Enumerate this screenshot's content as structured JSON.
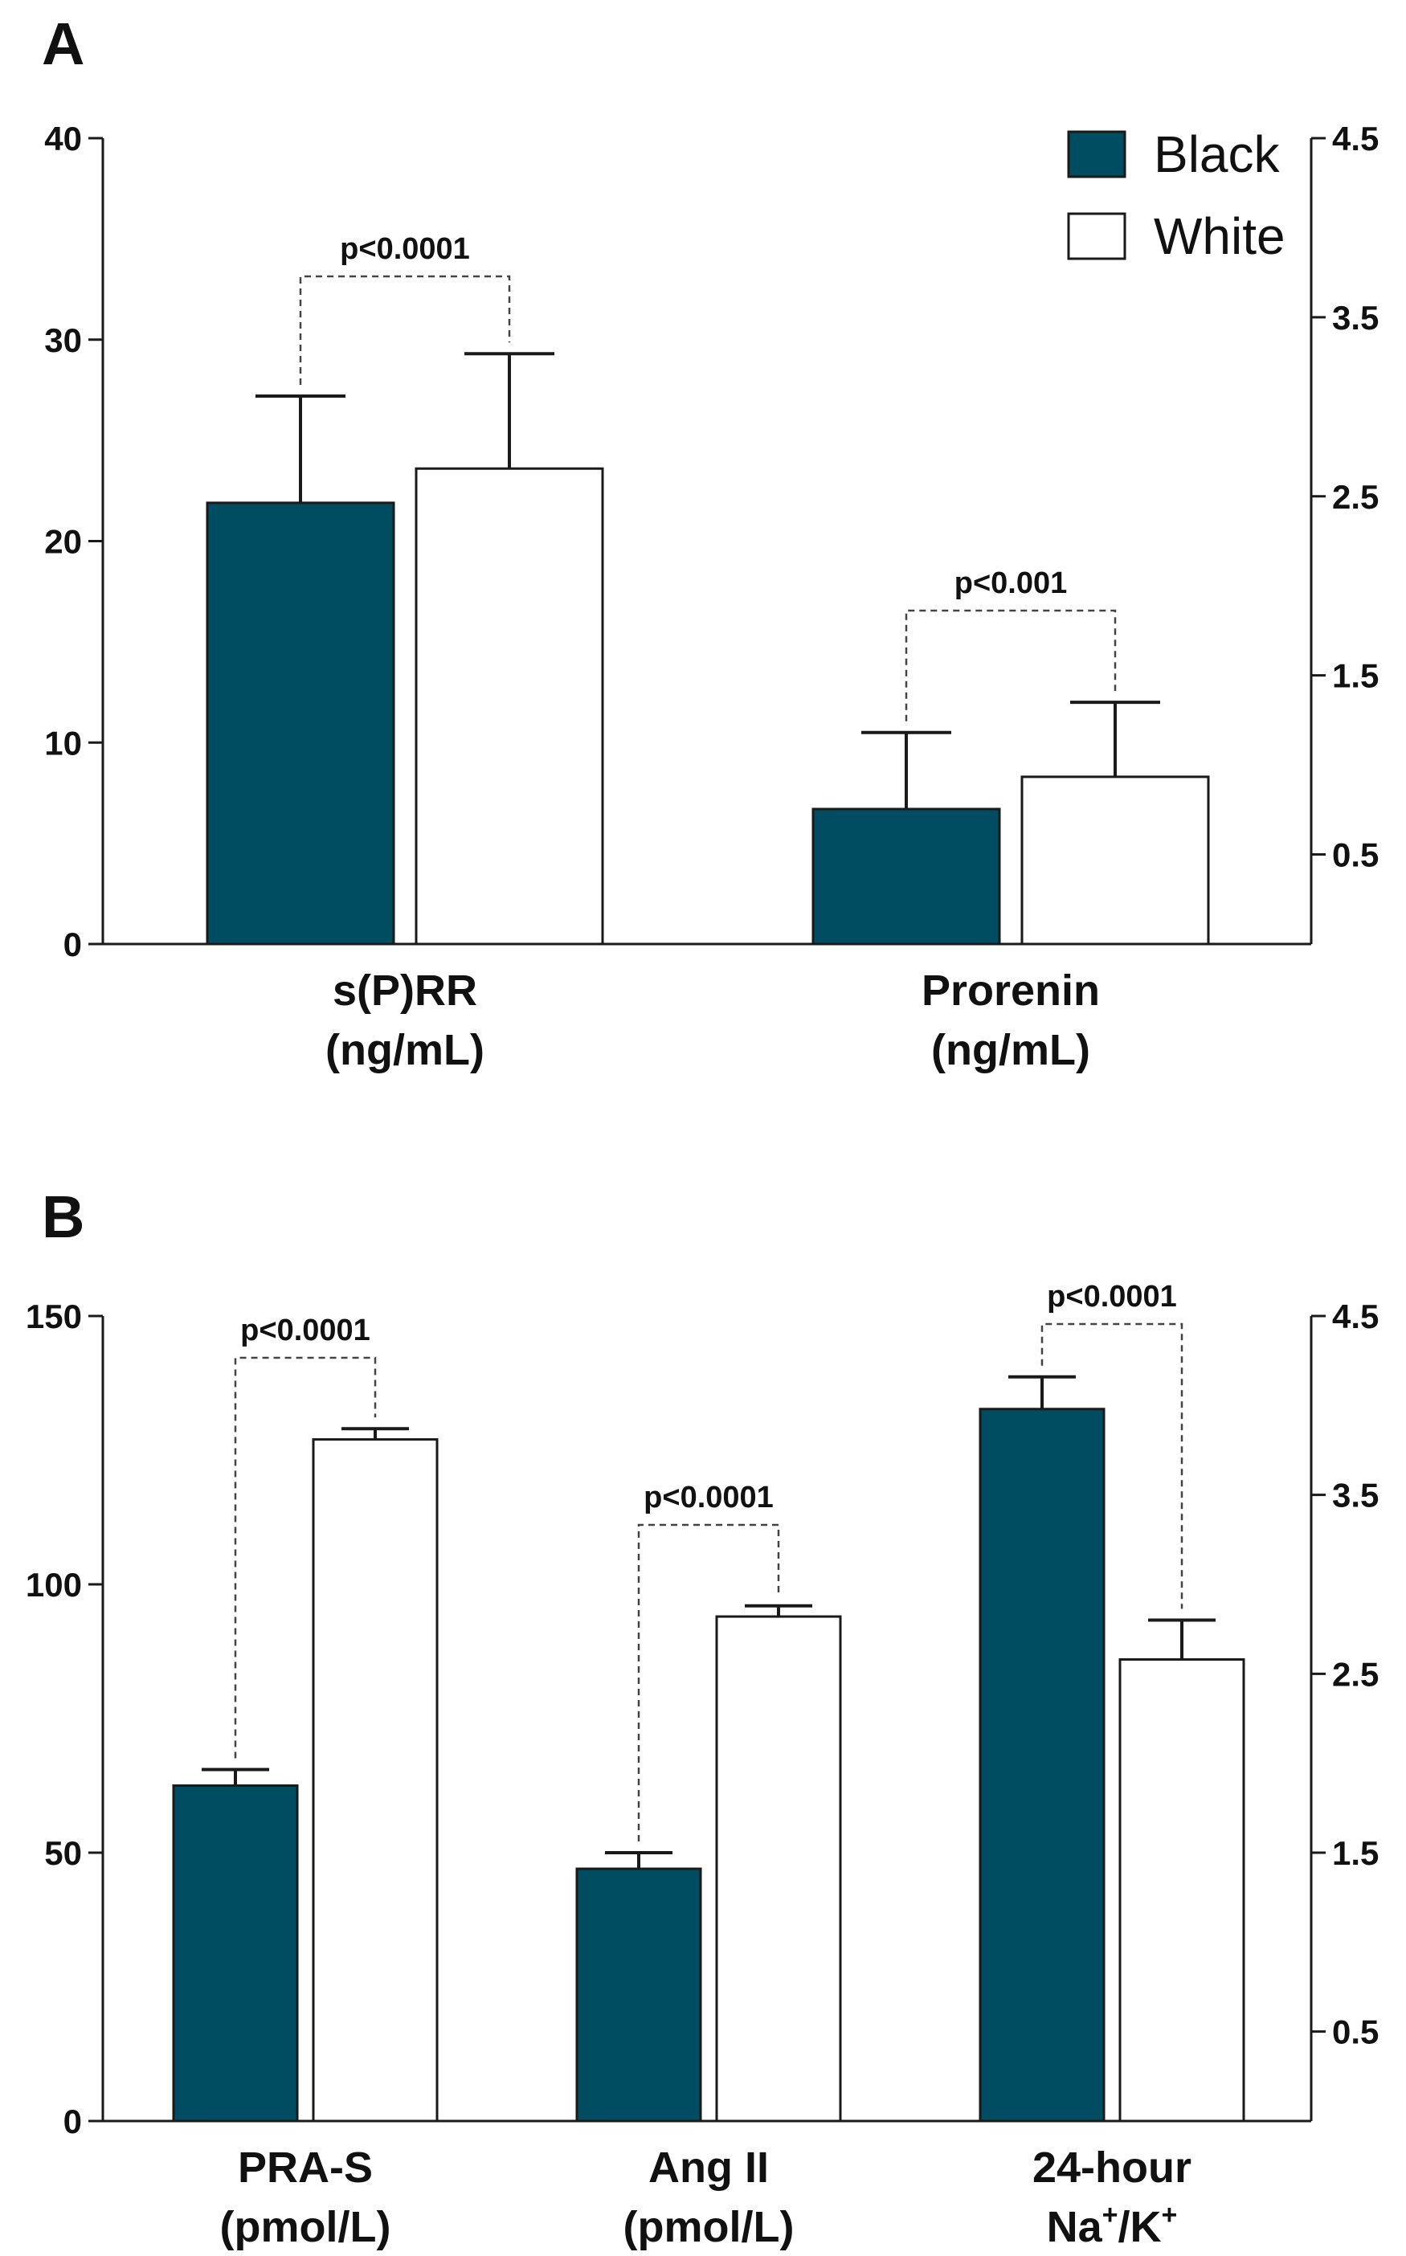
{
  "colors": {
    "black_series": "#004d62",
    "white_series": "#ffffff",
    "axis": "#1a1a1a"
  },
  "chart_data": [
    {
      "panel": "A",
      "type": "bar",
      "categories": [
        {
          "line1": "s(P)RR",
          "line2": "(ng/mL)"
        },
        {
          "line1": "Prorenin",
          "line2": "(ng/mL)"
        }
      ],
      "series": [
        {
          "name": "Black",
          "values": [
            21.9,
            6.7
          ],
          "errors": [
            5.3,
            3.8
          ]
        },
        {
          "name": "White",
          "values": [
            23.6,
            8.3
          ],
          "errors": [
            5.7,
            3.7
          ]
        }
      ],
      "left_axis": {
        "ylim": [
          0,
          40
        ],
        "ticks": [
          0,
          10,
          20,
          30,
          40
        ],
        "labels": [
          "0",
          "10",
          "20",
          "30",
          "40"
        ]
      },
      "right_axis": {
        "ylim": [
          0,
          4.5
        ],
        "ticks": [
          0.5,
          1.5,
          2.5,
          3.5,
          4.5
        ],
        "labels": [
          "0.5",
          "1.5",
          "2.5",
          "3.5",
          "4.5"
        ]
      },
      "legend": {
        "position": "top-right",
        "entries": [
          "Black",
          "White"
        ]
      },
      "annotations": [
        "p<0.0001",
        "p<0.001"
      ]
    },
    {
      "panel": "B",
      "type": "bar",
      "categories": [
        {
          "line1": "PRA-S",
          "line2": "(pmol/L)"
        },
        {
          "line1": "Ang II",
          "line2": "(pmol/L)"
        },
        {
          "line1": "24-hour",
          "line2": "Na",
          "sup1": "+",
          "mid": "/K",
          "sup2": "+"
        }
      ],
      "series": [
        {
          "name": "Black",
          "values": [
            62.5,
            47,
            3.98
          ],
          "errors": [
            3,
            3,
            0.18
          ]
        },
        {
          "name": "White",
          "values": [
            127,
            94,
            2.58
          ],
          "errors": [
            2,
            2,
            0.22
          ]
        }
      ],
      "left_axis": {
        "ylim": [
          0,
          150
        ],
        "ticks": [
          0,
          50,
          100,
          150
        ],
        "labels": [
          "0",
          "50",
          "100",
          "150"
        ]
      },
      "right_axis": {
        "ylim": [
          0,
          4.5
        ],
        "ticks": [
          0.5,
          1.5,
          2.5,
          3.5,
          4.5
        ],
        "labels": [
          "0.5",
          "1.5",
          "2.5",
          "3.5",
          "4.5"
        ]
      },
      "axis_used": [
        "left",
        "left",
        "right"
      ],
      "annotations": [
        "p<0.0001",
        "p<0.0001",
        "p<0.0001"
      ]
    }
  ]
}
